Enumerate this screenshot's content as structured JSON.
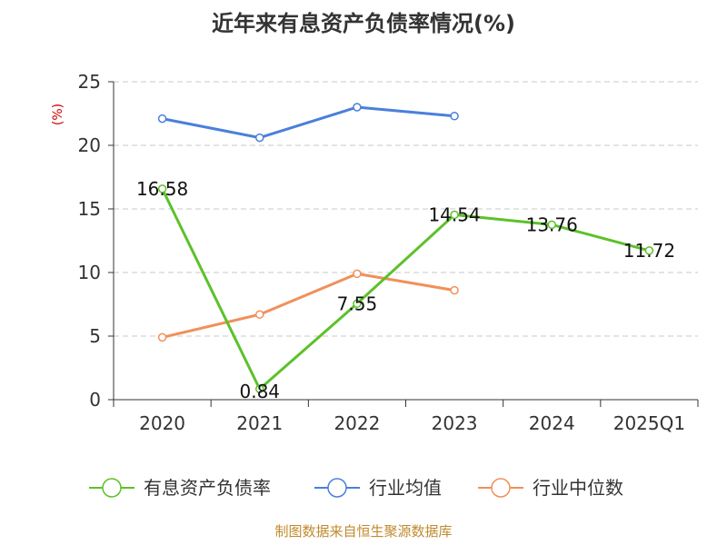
{
  "title": "近年来有息资产负债率情况(%)",
  "source": "制图数据来自恒生聚源数据库",
  "chart_data": {
    "type": "line",
    "title": "近年来有息资产负债率情况(%)",
    "ylabel": "(%)",
    "xlabel": "",
    "categories": [
      "2020",
      "2021",
      "2022",
      "2023",
      "2024",
      "2025Q1"
    ],
    "ylim": [
      0,
      25
    ],
    "yticks": [
      0,
      5,
      10,
      15,
      20,
      25
    ],
    "grid": true,
    "legend_position": "bottom",
    "series": [
      {
        "name": "有息资产负债率",
        "color": "#5cc12a",
        "values": [
          16.58,
          0.84,
          7.55,
          14.54,
          13.76,
          11.72
        ],
        "labels": [
          "16.58",
          "0.84",
          "7.55",
          "14.54",
          "13.76",
          "11.72"
        ],
        "show_labels": true
      },
      {
        "name": "行业均值",
        "color": "#4a7fdc",
        "values": [
          22.1,
          20.6,
          23.0,
          22.3,
          null,
          null
        ],
        "show_labels": false
      },
      {
        "name": "行业中位数",
        "color": "#f0905a",
        "values": [
          4.9,
          6.7,
          9.9,
          8.6,
          null,
          null
        ],
        "show_labels": false
      }
    ]
  }
}
